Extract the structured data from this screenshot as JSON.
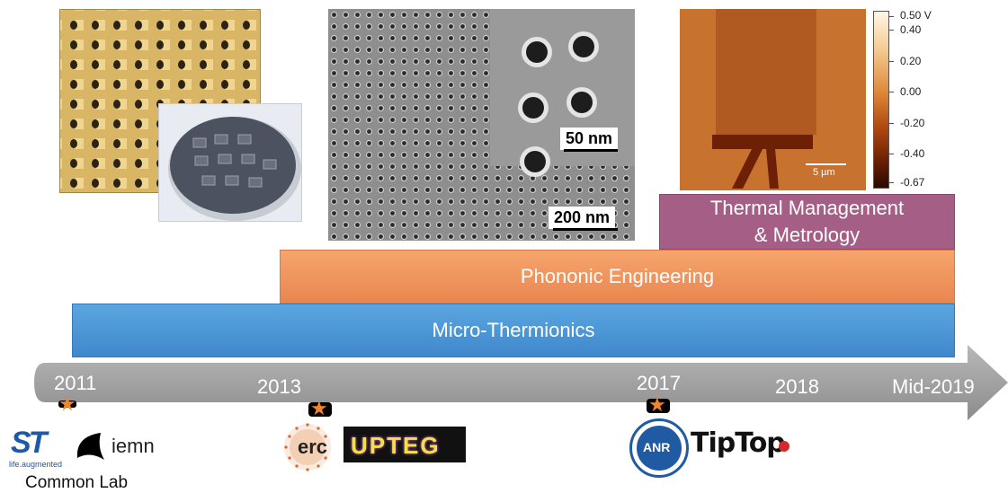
{
  "images": {
    "sem_scale_small": "50 nm",
    "sem_scale_large": "200 nm",
    "afm_scale": "5 µm"
  },
  "colorbar": {
    "ticks": [
      "0.50 V",
      "0.40",
      "0.20",
      "0.00",
      "-0.20",
      "-0.40",
      "-0.67"
    ]
  },
  "bands": {
    "thermal_line1": "Thermal Management",
    "thermal_line2": "& Metrology",
    "phonon": "Phononic Engineering",
    "micro": "Micro-Thermionics"
  },
  "timeline": {
    "years": [
      "2011",
      "2013",
      "2017",
      "2018",
      "Mid-2019"
    ]
  },
  "logos": {
    "st_tagline": "life.augmented",
    "iemn": "iemn",
    "common_lab": "Common Lab",
    "erc": "erc",
    "upteg": "UPTEG",
    "anr": "ANR",
    "tiptop": "TipTop"
  },
  "colors": {
    "micro_band": "#3f88cc",
    "phonon_band": "#ea8650",
    "thermal_band": "#a55f86",
    "arrow": "#a6a6a6",
    "star": "#f0862c"
  }
}
